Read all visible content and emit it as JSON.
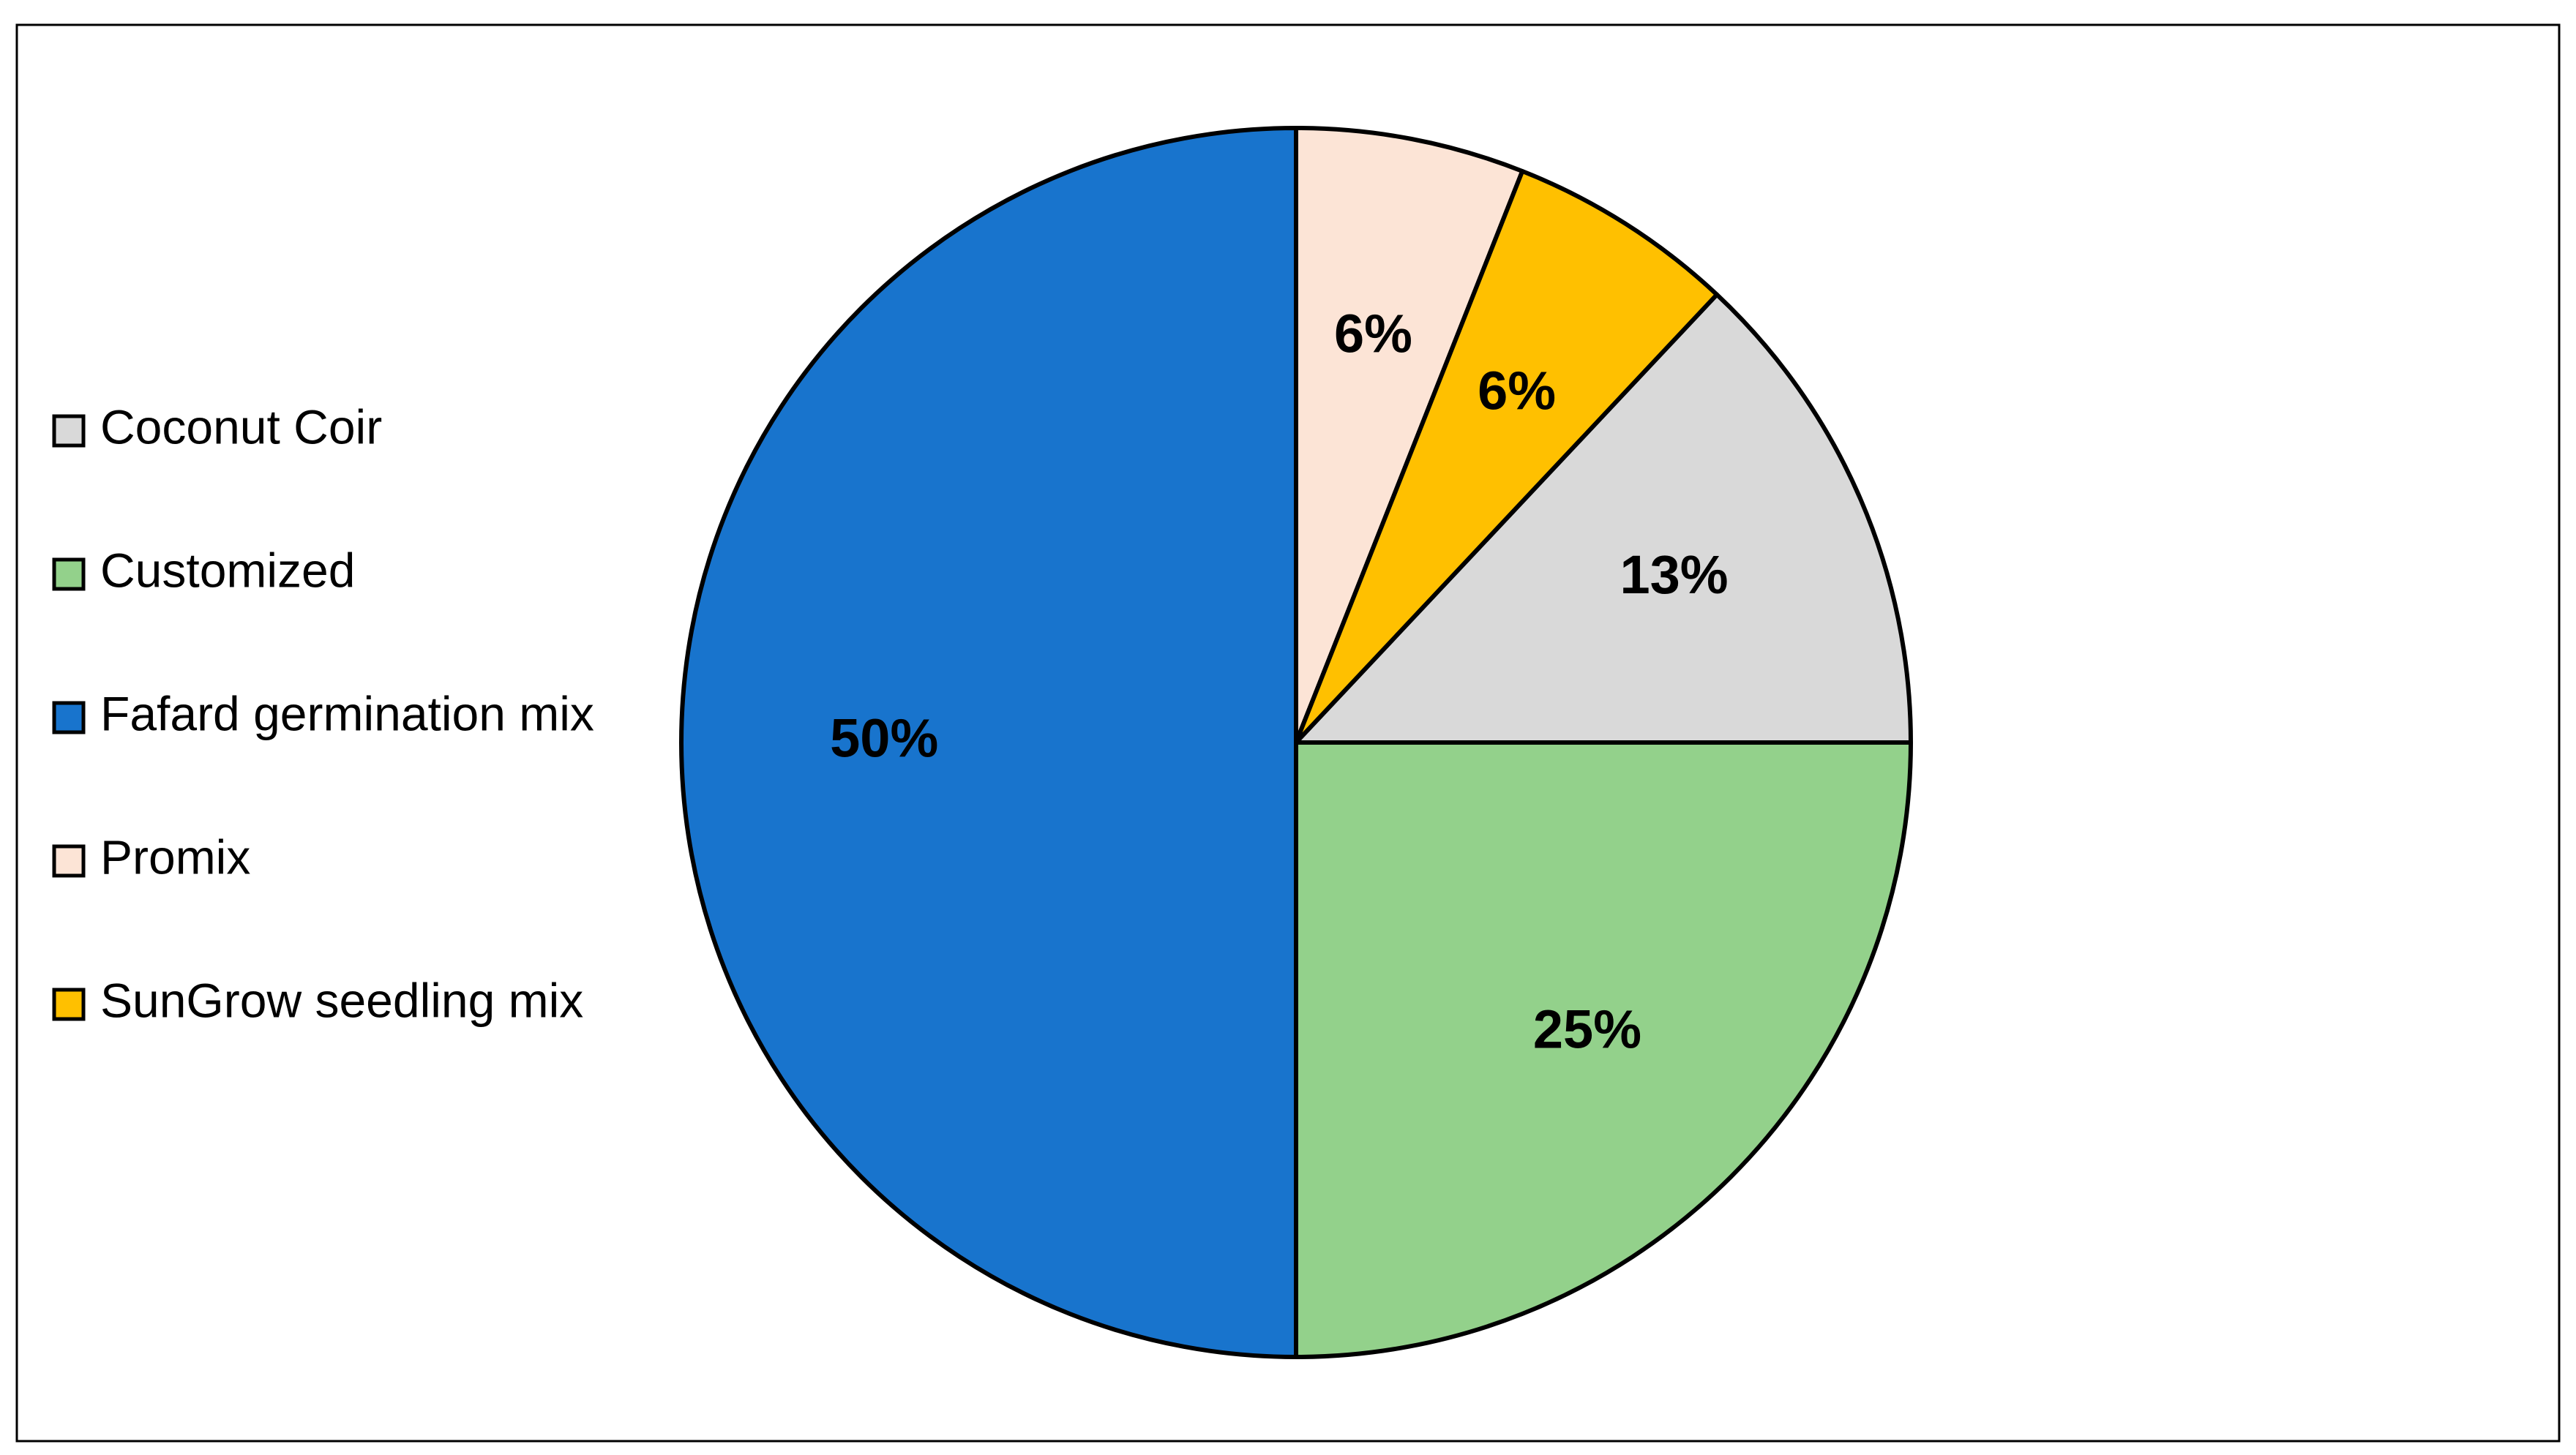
{
  "chart_data": {
    "type": "pie",
    "categories": [
      "Coconut Coir",
      "Customized",
      "Fafard germination mix",
      "Promix",
      "SunGrow seedling mix"
    ],
    "values": [
      13,
      25,
      50,
      6,
      6
    ],
    "value_labels": [
      "13%",
      "25%",
      "50%",
      "6%",
      "6%"
    ],
    "colors": [
      "#d9d9d9",
      "#93d18b",
      "#1874cd",
      "#fce4d6",
      "#ffc000"
    ],
    "start_angle": 43.2,
    "legend": "left"
  }
}
